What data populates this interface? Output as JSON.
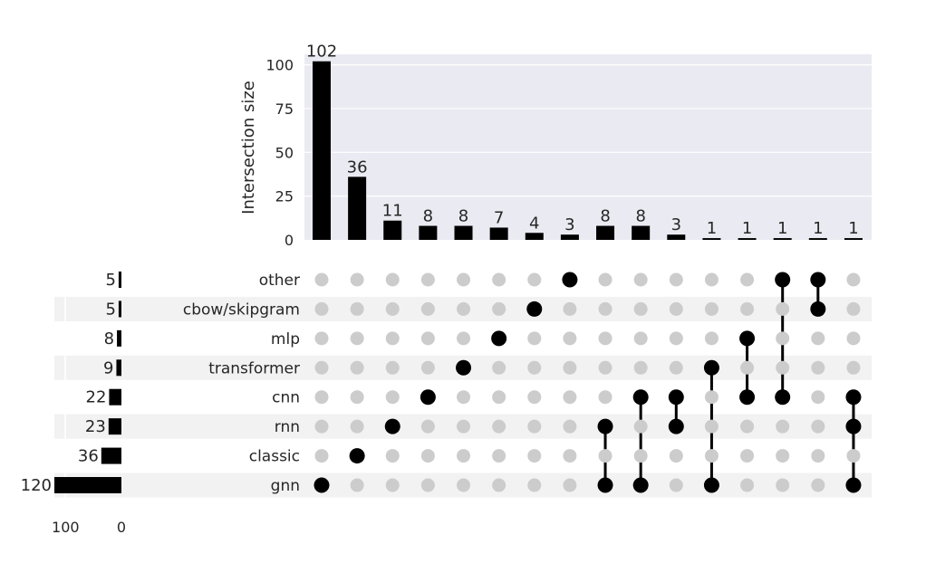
{
  "chart_data": {
    "type": "upset",
    "sets": [
      "other",
      "cbow/skipgram",
      "mlp",
      "transformer",
      "cnn",
      "rnn",
      "classic",
      "gnn"
    ],
    "set_sizes": [
      5,
      5,
      8,
      9,
      22,
      23,
      36,
      120
    ],
    "set_size_axis": {
      "ticks": [
        100,
        0
      ],
      "xlim": [
        120,
        0
      ]
    },
    "intersections": [
      {
        "members": [
          "gnn"
        ],
        "size": 102
      },
      {
        "members": [
          "classic"
        ],
        "size": 36
      },
      {
        "members": [
          "rnn"
        ],
        "size": 11
      },
      {
        "members": [
          "cnn"
        ],
        "size": 8
      },
      {
        "members": [
          "transformer"
        ],
        "size": 8
      },
      {
        "members": [
          "mlp"
        ],
        "size": 7
      },
      {
        "members": [
          "cbow/skipgram"
        ],
        "size": 4
      },
      {
        "members": [
          "other"
        ],
        "size": 3
      },
      {
        "members": [
          "rnn",
          "gnn"
        ],
        "size": 8
      },
      {
        "members": [
          "cnn",
          "gnn"
        ],
        "size": 8
      },
      {
        "members": [
          "cnn",
          "rnn"
        ],
        "size": 3
      },
      {
        "members": [
          "transformer",
          "gnn"
        ],
        "size": 1
      },
      {
        "members": [
          "mlp",
          "cnn"
        ],
        "size": 1
      },
      {
        "members": [
          "other",
          "cnn"
        ],
        "size": 1
      },
      {
        "members": [
          "other",
          "cbow/skipgram"
        ],
        "size": 1
      },
      {
        "members": [
          "cnn",
          "rnn",
          "gnn"
        ],
        "size": 1
      }
    ],
    "ylabel": "Intersection size",
    "yticks": [
      0,
      25,
      50,
      75,
      100
    ],
    "ylim": [
      0,
      106
    ],
    "grid": true
  },
  "colors": {
    "bar": "#000000",
    "active_dot": "#000000",
    "inactive_dot": "#cccccc",
    "plot_bg": "#eaeaf2",
    "gridline": "#ffffff",
    "stripe": "#f2f2f2",
    "text": "#262626"
  }
}
